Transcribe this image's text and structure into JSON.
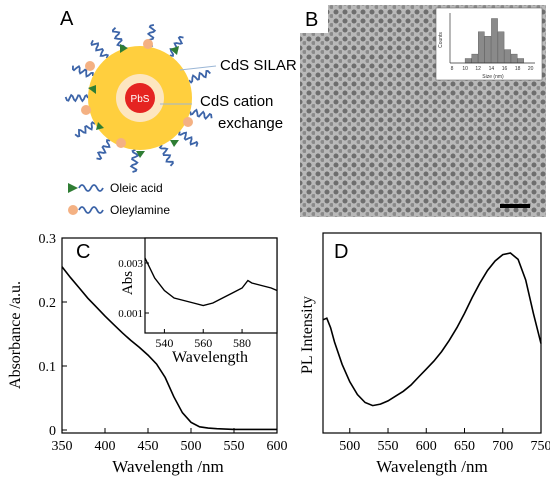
{
  "panels": {
    "A": {
      "label": "A",
      "core": "PbS",
      "shell_outer": "CdS SILAR",
      "shell_inner_line1": "CdS cation",
      "shell_inner_line2": "exchange",
      "legend": [
        "Oleic acid",
        "Oleylamine"
      ],
      "colors": {
        "shell": "#ffcf3e",
        "inner_shell": "#fde6c0",
        "core": "#e52421",
        "ligand_wave": "#3c64a8",
        "oleic_head": "#2f7d34",
        "oleylamine_head": "#f4b183"
      }
    },
    "B": {
      "label": "B",
      "inset_chart": {
        "type": "bar",
        "categories": [
          8,
          10,
          11,
          12,
          13,
          14,
          15,
          16,
          17,
          18,
          19,
          20
        ],
        "values": [
          0,
          1,
          2,
          7,
          6,
          10,
          7,
          3,
          2,
          1,
          0,
          0
        ],
        "xlabel": "Size (nm)",
        "ylabel": "Counts",
        "xticks": [
          "8",
          "10",
          "12",
          "14",
          "16",
          "18",
          "20"
        ]
      }
    },
    "C": {
      "label": "C",
      "xlabel": "Wavelength /nm",
      "ylabel": "Absorbance /a.u.",
      "xticks": [
        "350",
        "400",
        "450",
        "500",
        "550",
        "600"
      ],
      "yticks": [
        "0",
        "0.1",
        "0.2",
        "0.3"
      ],
      "inset": {
        "xlabel": "Wavelength",
        "ylabel": "Abs",
        "xticks": [
          "540",
          "560",
          "580"
        ],
        "yticks": [
          "0.001",
          "0.003"
        ]
      }
    },
    "D": {
      "label": "D",
      "xlabel": "Wavelength /nm",
      "ylabel": "PL Intensity",
      "xticks": [
        "500",
        "550",
        "600",
        "650",
        "700",
        "750"
      ]
    }
  },
  "chart_data": [
    {
      "type": "line",
      "panel": "C",
      "xlabel": "Wavelength /nm",
      "ylabel": "Absorbance /a.u.",
      "xlim": [
        350,
        600
      ],
      "ylim": [
        0,
        0.3
      ],
      "x": [
        350,
        360,
        370,
        380,
        390,
        400,
        410,
        420,
        430,
        440,
        450,
        460,
        470,
        480,
        490,
        500,
        510,
        520,
        530,
        550,
        575,
        600
      ],
      "y": [
        0.255,
        0.238,
        0.222,
        0.206,
        0.192,
        0.178,
        0.165,
        0.152,
        0.14,
        0.129,
        0.117,
        0.103,
        0.082,
        0.052,
        0.027,
        0.012,
        0.005,
        0.003,
        0.002,
        0.001,
        0.001,
        0.001
      ]
    },
    {
      "type": "line",
      "panel": "C-inset",
      "xlabel": "Wavelength",
      "ylabel": "Abs",
      "xlim": [
        530,
        598
      ],
      "ylim": [
        0.0002,
        0.004
      ],
      "x": [
        530,
        535,
        540,
        545,
        550,
        555,
        560,
        565,
        570,
        575,
        580,
        583,
        585,
        590,
        595,
        598
      ],
      "y": [
        0.0032,
        0.0024,
        0.0019,
        0.0016,
        0.0015,
        0.0014,
        0.0013,
        0.0014,
        0.0016,
        0.0018,
        0.002,
        0.0023,
        0.0022,
        0.0021,
        0.002,
        0.0019
      ]
    },
    {
      "type": "line",
      "panel": "D",
      "xlabel": "Wavelength /nm",
      "ylabel": "PL Intensity",
      "xlim": [
        465,
        750
      ],
      "ylim": [
        0,
        1
      ],
      "x": [
        465,
        470,
        475,
        480,
        490,
        500,
        510,
        520,
        530,
        540,
        550,
        560,
        570,
        580,
        590,
        600,
        610,
        620,
        630,
        640,
        650,
        660,
        670,
        680,
        690,
        700,
        710,
        720,
        730,
        740,
        750
      ],
      "y": [
        0.58,
        0.59,
        0.53,
        0.44,
        0.3,
        0.19,
        0.11,
        0.06,
        0.04,
        0.05,
        0.07,
        0.1,
        0.13,
        0.17,
        0.22,
        0.27,
        0.32,
        0.38,
        0.45,
        0.53,
        0.62,
        0.72,
        0.81,
        0.89,
        0.95,
        0.99,
        1.0,
        0.96,
        0.83,
        0.62,
        0.43
      ]
    }
  ]
}
